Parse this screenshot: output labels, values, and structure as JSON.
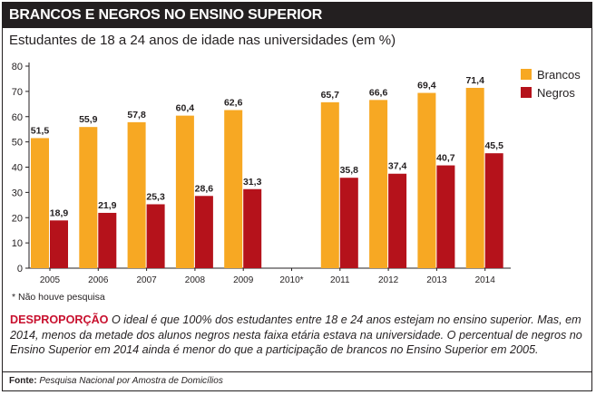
{
  "header": {
    "title": "BRANCOS E NEGROS NO ENSINO SUPERIOR",
    "subtitle": "Estudantes de 18 a 24 anos de idade nas universidades (em %)"
  },
  "colors": {
    "brancos": "#f7a823",
    "negros": "#b5121b",
    "title_bg": "#231f20",
    "accent": "#c8102e"
  },
  "chart_data": {
    "type": "bar",
    "categories": [
      "2005",
      "2006",
      "2007",
      "2008",
      "2009",
      "2010*",
      "2011",
      "2012",
      "2013",
      "2014"
    ],
    "series": [
      {
        "name": "Brancos",
        "values": [
          51.5,
          55.9,
          57.8,
          60.4,
          62.6,
          null,
          65.7,
          66.6,
          69.4,
          71.4
        ],
        "labels": [
          "51,5",
          "55,9",
          "57,8",
          "60,4",
          "62,6",
          null,
          "65,7",
          "66,6",
          "69,4",
          "71,4"
        ]
      },
      {
        "name": "Negros",
        "values": [
          18.9,
          21.9,
          25.3,
          28.6,
          31.3,
          null,
          35.8,
          37.4,
          40.7,
          45.5
        ],
        "labels": [
          "18,9",
          "21,9",
          "25,3",
          "28,6",
          "31,3",
          null,
          "35,8",
          "37,4",
          "40,7",
          "45,5"
        ]
      }
    ],
    "yticks": [
      "0",
      "10",
      "20",
      "30",
      "40",
      "50",
      "60",
      "70",
      "80"
    ],
    "ylim": [
      0,
      80
    ],
    "legend_position": "top-right",
    "grid": false
  },
  "footnote": "* Não houve pesquisa",
  "caption": {
    "lead": "DESPROPORÇÃO",
    "text": " O ideal é que 100% dos estudantes entre 18 e 24 anos estejam no ensino superior. Mas, em 2014, menos da metade dos alunos negros nesta faixa etária estava na universidade. O percentual de negros no Ensino Superior em 2014 ainda é menor do que a participação de brancos no Ensino Superior em 2005."
  },
  "source": {
    "label": "Fonte:",
    "text": " Pesquisa Nacional por Amostra de Domicílios"
  }
}
